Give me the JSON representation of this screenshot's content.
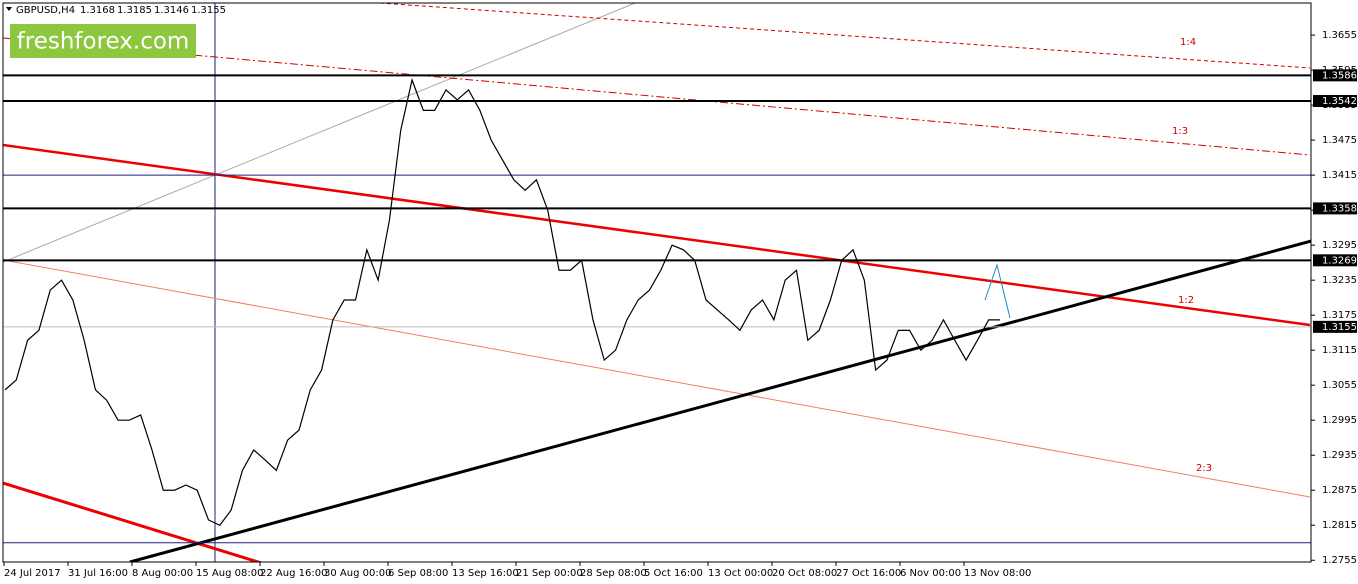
{
  "chart_data": {
    "type": "line",
    "symbol": "GBPUSD,H4",
    "header_prices": [
      1.3168,
      1.3185,
      1.3146,
      1.3155
    ],
    "watermark": "freshforex.com",
    "x_labels": [
      "24 Jul 2017",
      "31 Jul 16:00",
      "8 Aug 00:00",
      "15 Aug 08:00",
      "22 Aug 16:00",
      "30 Aug 00:00",
      "6 Sep 08:00",
      "13 Sep 16:00",
      "21 Sep 00:00",
      "28 Sep 08:00",
      "5 Oct 16:00",
      "13 Oct 00:00",
      "20 Oct 08:00",
      "27 Oct 16:00",
      "6 Nov 00:00",
      "13 Nov 08:00"
    ],
    "values": [
      1.3047,
      1.3064,
      1.3132,
      1.3149,
      1.3218,
      1.3235,
      1.3201,
      1.3132,
      1.3047,
      1.3029,
      1.2995,
      1.2995,
      1.3004,
      1.2944,
      1.2875,
      1.2875,
      1.2884,
      1.2875,
      1.2824,
      1.2815,
      1.2841,
      1.2909,
      1.2944,
      1.2927,
      1.2909,
      1.2961,
      1.2978,
      1.3047,
      1.3081,
      1.3167,
      1.3201,
      1.3201,
      1.3287,
      1.3235,
      1.3338,
      1.3492,
      1.3578,
      1.3526,
      1.3526,
      1.3561,
      1.3544,
      1.3561,
      1.3526,
      1.3475,
      1.3441,
      1.3407,
      1.3389,
      1.3407,
      1.3355,
      1.3252,
      1.3252,
      1.3269,
      1.3167,
      1.3098,
      1.3115,
      1.3167,
      1.3201,
      1.3218,
      1.3252,
      1.3295,
      1.3287,
      1.3269,
      1.3201,
      1.3184,
      1.3167,
      1.3149,
      1.3184,
      1.3201,
      1.3167,
      1.3235,
      1.3252,
      1.3132,
      1.3149,
      1.3201,
      1.3269,
      1.3287,
      1.3235,
      1.3081,
      1.3098,
      1.3149,
      1.3149,
      1.3115,
      1.3132,
      1.3167,
      1.3132,
      1.3098,
      1.3132,
      1.3167,
      1.3167
    ],
    "color": "#000000",
    "ylim": [
      1.2752,
      1.371
    ],
    "yticks": [
      1.3655,
      1.3595,
      1.3535,
      1.3475,
      1.3415,
      1.3355,
      1.3295,
      1.3235,
      1.3175,
      1.3115,
      1.3055,
      1.2995,
      1.2935,
      1.2875,
      1.2815,
      1.2755
    ],
    "price_levels": [
      1.3586,
      1.3542,
      1.3358,
      1.3269,
      1.3155
    ],
    "blue_levels": [
      1.3415,
      1.2785
    ],
    "annotations": [
      "1:4",
      "1:3",
      "1:2",
      "2:3"
    ]
  }
}
